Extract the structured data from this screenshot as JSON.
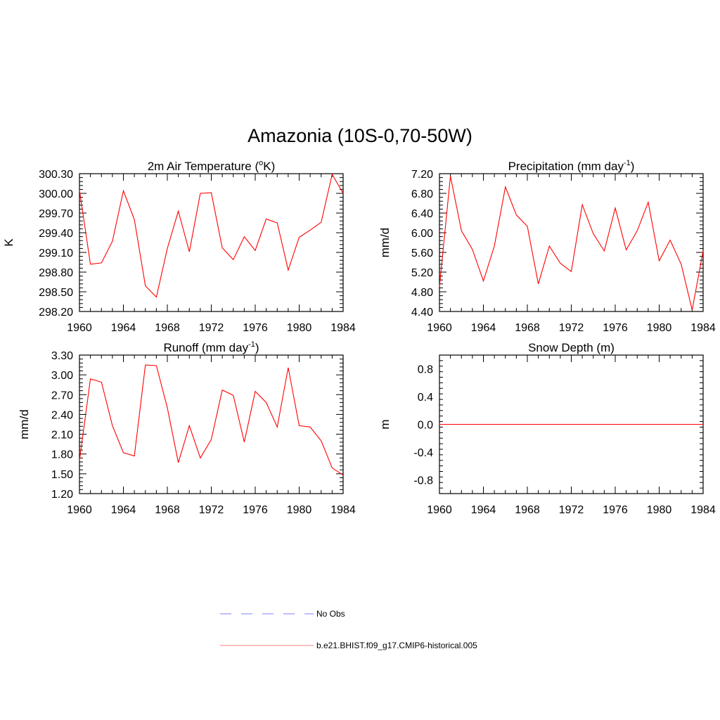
{
  "title": "Amazonia (10S-0,70-50W)",
  "colors": {
    "model_line": "#ff0000",
    "obs_line": "#9999ff",
    "axis": "#000000"
  },
  "legend": {
    "entries": [
      {
        "label": "No Obs",
        "style": "dashed",
        "color": "#9999ff"
      },
      {
        "label": "b.e21.BHIST.f09_g17.CMIP6-historical.005",
        "style": "solid",
        "color": "#ff0000"
      }
    ]
  },
  "chart_data": [
    {
      "id": "temp",
      "type": "line",
      "title": "2m Air Temperature",
      "title_unit_pre": " (",
      "title_unit_base": "o",
      "title_unit_post": "K)",
      "title_unit_sup_is_base_super": true,
      "ylabel": "K",
      "xlim": [
        1960,
        1984
      ],
      "ylim": [
        298.2,
        300.3
      ],
      "xticks": [
        "1960",
        "1964",
        "1968",
        "1972",
        "1976",
        "1980",
        "1984"
      ],
      "yticks": [
        "300.30",
        "300.00",
        "299.70",
        "299.40",
        "299.10",
        "298.80",
        "298.50",
        "298.20"
      ],
      "series": [
        {
          "name": "b.e21.BHIST.f09_g17.CMIP6-historical.005",
          "x": [
            1960,
            1961,
            1962,
            1963,
            1964,
            1965,
            1966,
            1967,
            1968,
            1969,
            1970,
            1971,
            1972,
            1973,
            1974,
            1975,
            1976,
            1977,
            1978,
            1979,
            1980,
            1981,
            1982,
            1983,
            1984
          ],
          "values": [
            300.05,
            298.92,
            298.94,
            299.27,
            300.04,
            299.6,
            298.59,
            298.42,
            299.16,
            299.73,
            299.11,
            300.0,
            300.01,
            299.17,
            298.99,
            299.34,
            299.13,
            299.61,
            299.55,
            298.83,
            299.33,
            299.44,
            299.56,
            300.29,
            300.0
          ]
        }
      ]
    },
    {
      "id": "precip",
      "type": "line",
      "title": "Precipitation (mm day",
      "title_sup": "-1",
      "title_post": ")",
      "ylabel": "mm/d",
      "xlim": [
        1960,
        1984
      ],
      "ylim": [
        4.4,
        7.2
      ],
      "xticks": [
        "1960",
        "1964",
        "1968",
        "1972",
        "1976",
        "1980",
        "1984"
      ],
      "yticks": [
        "7.20",
        "6.80",
        "6.40",
        "6.00",
        "5.60",
        "5.20",
        "4.80",
        "4.40"
      ],
      "series": [
        {
          "name": "b.e21.BHIST.f09_g17.CMIP6-historical.005",
          "x": [
            1960,
            1961,
            1962,
            1963,
            1964,
            1965,
            1966,
            1967,
            1968,
            1969,
            1970,
            1971,
            1972,
            1973,
            1974,
            1975,
            1976,
            1977,
            1978,
            1979,
            1980,
            1981,
            1982,
            1983,
            1984
          ],
          "values": [
            4.9,
            7.15,
            6.04,
            5.66,
            5.02,
            5.73,
            6.93,
            6.36,
            6.13,
            4.96,
            5.73,
            5.38,
            5.21,
            6.57,
            5.98,
            5.63,
            6.5,
            5.65,
            6.04,
            6.62,
            5.43,
            5.85,
            5.36,
            4.43,
            5.63
          ]
        }
      ]
    },
    {
      "id": "runoff",
      "type": "line",
      "title": "Runoff (mm day",
      "title_sup": "-1",
      "title_post": ")",
      "ylabel": "mm/d",
      "xlim": [
        1960,
        1984
      ],
      "ylim": [
        1.2,
        3.3
      ],
      "xticks": [
        "1960",
        "1964",
        "1968",
        "1972",
        "1976",
        "1980",
        "1984"
      ],
      "yticks": [
        "3.30",
        "3.00",
        "2.70",
        "2.40",
        "2.10",
        "1.80",
        "1.50",
        "1.20"
      ],
      "series": [
        {
          "name": "b.e21.BHIST.f09_g17.CMIP6-historical.005",
          "x": [
            1960,
            1961,
            1962,
            1963,
            1964,
            1965,
            1966,
            1967,
            1968,
            1969,
            1970,
            1971,
            1972,
            1973,
            1974,
            1975,
            1976,
            1977,
            1978,
            1979,
            1980,
            1981,
            1982,
            1983,
            1984
          ],
          "values": [
            1.7,
            2.94,
            2.89,
            2.23,
            1.82,
            1.77,
            3.15,
            3.14,
            2.5,
            1.67,
            2.23,
            1.74,
            2.02,
            2.77,
            2.69,
            1.98,
            2.75,
            2.58,
            2.21,
            3.11,
            2.23,
            2.21,
            2.0,
            1.59,
            1.48
          ]
        }
      ]
    },
    {
      "id": "snow",
      "type": "line",
      "title": "Snow Depth (m)",
      "ylabel": "m",
      "xlim": [
        1960,
        1984
      ],
      "ylim": [
        -1.0,
        1.0
      ],
      "xticks": [
        "1960",
        "1964",
        "1968",
        "1972",
        "1976",
        "1980",
        "1984"
      ],
      "yticks": [
        "0.8",
        "0.4",
        "0.0",
        "-0.4",
        "-0.8"
      ],
      "ytick_values": [
        0.8,
        0.4,
        0.0,
        -0.4,
        -0.8
      ],
      "series": [
        {
          "name": "b.e21.BHIST.f09_g17.CMIP6-historical.005",
          "x": [
            1960,
            1984
          ],
          "values": [
            0.0,
            0.0
          ]
        }
      ]
    }
  ]
}
